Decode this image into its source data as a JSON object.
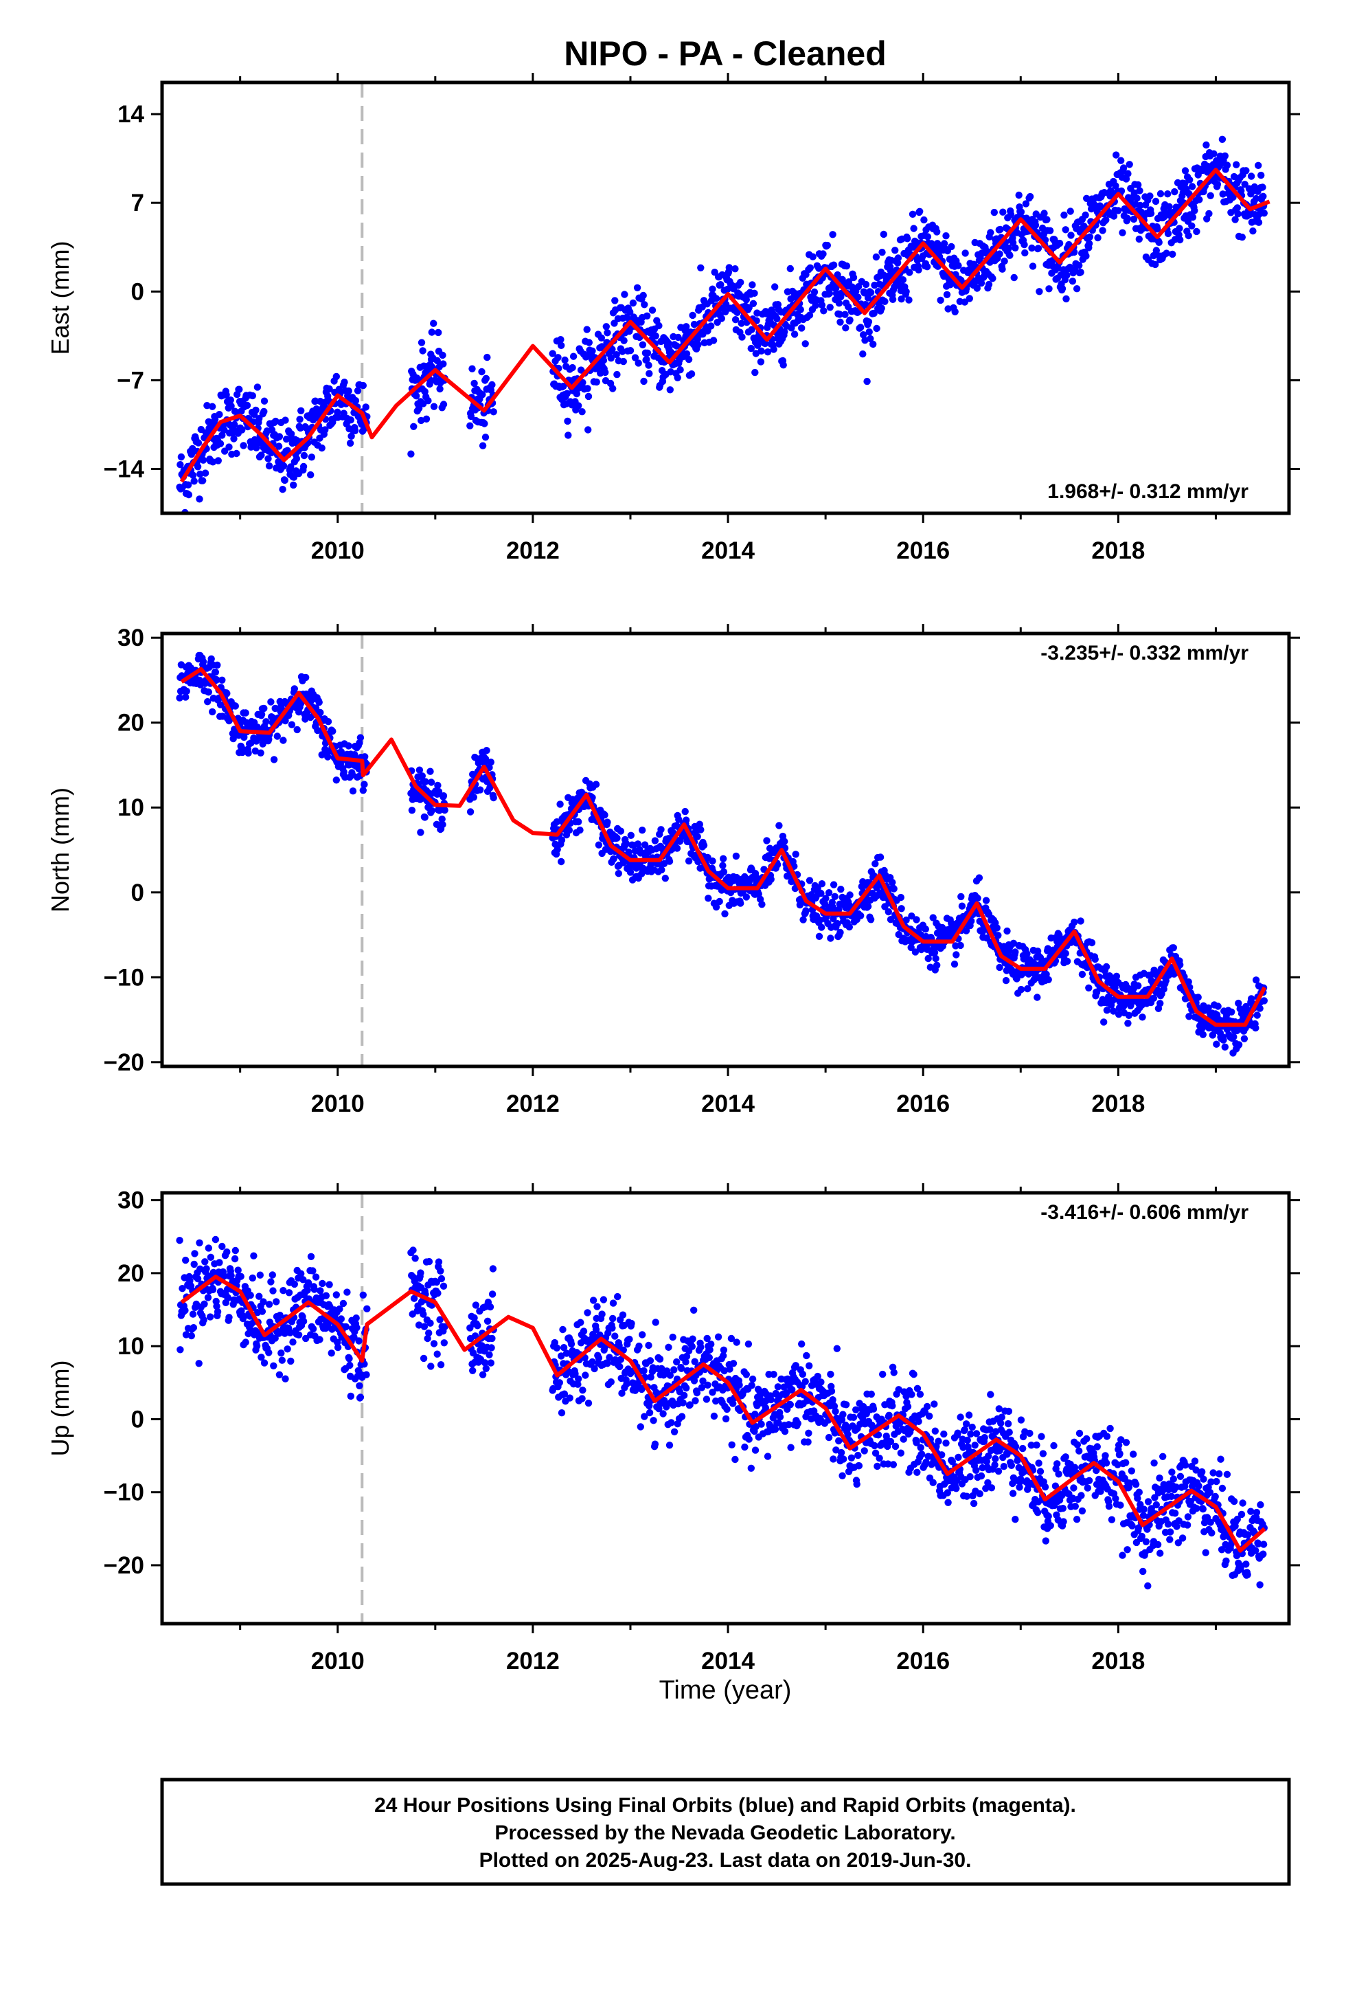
{
  "title": "NIPO  - PA - Cleaned",
  "xlabel": "Time (year)",
  "footer": {
    "lines": [
      "24 Hour Positions Using Final Orbits (blue) and Rapid Orbits (magenta).",
      "Processed by the Nevada Geodetic Laboratory.",
      "Plotted on 2025-Aug-23. Last data on 2019-Jun-30."
    ]
  },
  "colors": {
    "points": "#0000ff",
    "model": "#ff0000",
    "equipment_change": "#bbbbbb"
  },
  "chart_data": [
    {
      "type": "scatter",
      "component": "East",
      "ylabel": "East (mm)",
      "rate_label": "1.968+/- 0.312 mm/yr",
      "rate_position": "bottom-right",
      "xlim": [
        2008.2,
        2019.75
      ],
      "ylim": [
        -17.5,
        16.5
      ],
      "yticks": [
        -14,
        -7,
        0,
        7,
        14
      ],
      "ytick_labels": [
        "−14",
        "−7",
        "0",
        "7",
        "14"
      ],
      "xticks": [
        2010,
        2012,
        2014,
        2016,
        2018
      ],
      "equipment_change_year": 2010.25,
      "data_gaps": [
        [
          2010.3,
          2010.75
        ],
        [
          2011.1,
          2011.35
        ],
        [
          2011.6,
          2012.2
        ]
      ],
      "model_trend": [
        [
          2008.4,
          -15.0
        ],
        [
          2009.3,
          -12.8
        ],
        [
          2010.0,
          -9.6
        ],
        [
          2010.5,
          -8.9
        ],
        [
          2011.0,
          -6.4
        ],
        [
          2012.0,
          -4.5
        ],
        [
          2013.0,
          -2.5
        ],
        [
          2014.0,
          0.0
        ],
        [
          2015.0,
          2.0
        ],
        [
          2016.0,
          3.9
        ],
        [
          2017.0,
          5.2
        ],
        [
          2018.0,
          7.2
        ],
        [
          2019.0,
          8.8
        ],
        [
          2019.5,
          8.0
        ]
      ],
      "seasonal_amplitude": 1.9,
      "seasonal_peak_year": 2009.0,
      "model_curve": [
        [
          2008.4,
          -15.0
        ],
        [
          2008.6,
          -12.5
        ],
        [
          2008.8,
          -10.3
        ],
        [
          2009.0,
          -9.8
        ],
        [
          2009.2,
          -11.2
        ],
        [
          2009.45,
          -13.3
        ],
        [
          2009.7,
          -11.5
        ],
        [
          2010.0,
          -8.2
        ],
        [
          2010.25,
          -9.6
        ],
        [
          2010.35,
          -11.5
        ],
        [
          2010.6,
          -9.0
        ],
        [
          2011.0,
          -6.2
        ],
        [
          2011.5,
          -9.4
        ],
        [
          2012.0,
          -4.3
        ],
        [
          2012.4,
          -7.6
        ],
        [
          2013.0,
          -2.4
        ],
        [
          2013.4,
          -5.6
        ],
        [
          2014.0,
          -0.2
        ],
        [
          2014.4,
          -3.8
        ],
        [
          2015.0,
          1.8
        ],
        [
          2015.4,
          -1.7
        ],
        [
          2016.0,
          3.8
        ],
        [
          2016.4,
          0.3
        ],
        [
          2017.0,
          5.7
        ],
        [
          2017.4,
          2.3
        ],
        [
          2018.0,
          7.7
        ],
        [
          2018.4,
          4.3
        ],
        [
          2019.0,
          9.6
        ],
        [
          2019.35,
          6.5
        ],
        [
          2019.55,
          7.1
        ]
      ]
    },
    {
      "type": "scatter",
      "component": "North",
      "ylabel": "North (mm)",
      "rate_label": "-3.235+/- 0.332 mm/yr",
      "rate_position": "top-right",
      "xlim": [
        2008.2,
        2019.75
      ],
      "ylim": [
        -20.5,
        30.5
      ],
      "yticks": [
        -20,
        -10,
        0,
        10,
        20,
        30
      ],
      "ytick_labels": [
        "−20",
        "−10",
        "0",
        "10",
        "20",
        "30"
      ],
      "xticks": [
        2010,
        2012,
        2014,
        2016,
        2018
      ],
      "equipment_change_year": 2010.25,
      "data_gaps": [
        [
          2010.3,
          2010.75
        ],
        [
          2011.1,
          2011.35
        ],
        [
          2011.6,
          2012.2
        ]
      ],
      "model_curve": [
        [
          2008.4,
          24.8
        ],
        [
          2008.6,
          26.3
        ],
        [
          2008.8,
          23.5
        ],
        [
          2009.0,
          19.0
        ],
        [
          2009.3,
          18.8
        ],
        [
          2009.6,
          23.5
        ],
        [
          2009.8,
          20.5
        ],
        [
          2010.0,
          15.8
        ],
        [
          2010.25,
          15.5
        ],
        [
          2010.26,
          13.8
        ],
        [
          2010.55,
          18.0
        ],
        [
          2010.8,
          12.5
        ],
        [
          2011.0,
          10.3
        ],
        [
          2011.25,
          10.2
        ],
        [
          2011.5,
          14.8
        ],
        [
          2011.8,
          8.5
        ],
        [
          2012.0,
          7.0
        ],
        [
          2012.25,
          6.8
        ],
        [
          2012.55,
          11.5
        ],
        [
          2012.8,
          5.5
        ],
        [
          2013.0,
          3.8
        ],
        [
          2013.3,
          3.8
        ],
        [
          2013.55,
          8.0
        ],
        [
          2013.8,
          2.5
        ],
        [
          2014.0,
          0.5
        ],
        [
          2014.3,
          0.5
        ],
        [
          2014.55,
          5.0
        ],
        [
          2014.8,
          -1.0
        ],
        [
          2015.0,
          -2.5
        ],
        [
          2015.25,
          -2.5
        ],
        [
          2015.55,
          2.0
        ],
        [
          2015.8,
          -4.0
        ],
        [
          2016.0,
          -5.8
        ],
        [
          2016.3,
          -5.8
        ],
        [
          2016.55,
          -1.3
        ],
        [
          2016.8,
          -7.5
        ],
        [
          2017.0,
          -9.0
        ],
        [
          2017.25,
          -9.0
        ],
        [
          2017.55,
          -4.6
        ],
        [
          2017.8,
          -10.5
        ],
        [
          2018.0,
          -12.3
        ],
        [
          2018.3,
          -12.3
        ],
        [
          2018.55,
          -7.8
        ],
        [
          2018.8,
          -14.0
        ],
        [
          2019.0,
          -15.6
        ],
        [
          2019.3,
          -15.6
        ],
        [
          2019.5,
          -11.2
        ]
      ]
    },
    {
      "type": "scatter",
      "component": "Up",
      "ylabel": "Up (mm)",
      "rate_label": "-3.416+/- 0.606 mm/yr",
      "rate_position": "top-right",
      "xlim": [
        2008.2,
        2019.75
      ],
      "ylim": [
        -28,
        31
      ],
      "yticks": [
        -20,
        -10,
        0,
        10,
        20,
        30
      ],
      "ytick_labels": [
        "−20",
        "−10",
        "0",
        "10",
        "20",
        "30"
      ],
      "xticks": [
        2010,
        2012,
        2014,
        2016,
        2018
      ],
      "equipment_change_year": 2010.25,
      "data_gaps": [
        [
          2010.3,
          2010.75
        ],
        [
          2011.1,
          2011.35
        ],
        [
          2011.6,
          2012.2
        ]
      ],
      "model_curve": [
        [
          2008.4,
          16.0
        ],
        [
          2008.75,
          19.5
        ],
        [
          2009.0,
          17.5
        ],
        [
          2009.25,
          11.5
        ],
        [
          2009.7,
          16.0
        ],
        [
          2010.0,
          13.0
        ],
        [
          2010.25,
          8.0
        ],
        [
          2010.3,
          13.0
        ],
        [
          2010.75,
          17.5
        ],
        [
          2011.0,
          16.0
        ],
        [
          2011.3,
          9.5
        ],
        [
          2011.75,
          14.0
        ],
        [
          2012.0,
          12.5
        ],
        [
          2012.25,
          6.0
        ],
        [
          2012.7,
          11.0
        ],
        [
          2013.0,
          8.0
        ],
        [
          2013.25,
          2.5
        ],
        [
          2013.75,
          7.5
        ],
        [
          2014.0,
          5.0
        ],
        [
          2014.25,
          -0.5
        ],
        [
          2014.75,
          4.0
        ],
        [
          2015.0,
          1.5
        ],
        [
          2015.25,
          -4.0
        ],
        [
          2015.75,
          0.5
        ],
        [
          2016.0,
          -2.0
        ],
        [
          2016.25,
          -7.5
        ],
        [
          2016.75,
          -2.8
        ],
        [
          2017.0,
          -5.0
        ],
        [
          2017.25,
          -11.0
        ],
        [
          2017.75,
          -6.0
        ],
        [
          2018.0,
          -8.5
        ],
        [
          2018.25,
          -14.5
        ],
        [
          2018.75,
          -9.8
        ],
        [
          2019.0,
          -12.0
        ],
        [
          2019.25,
          -18.0
        ],
        [
          2019.5,
          -15.0
        ]
      ]
    }
  ]
}
